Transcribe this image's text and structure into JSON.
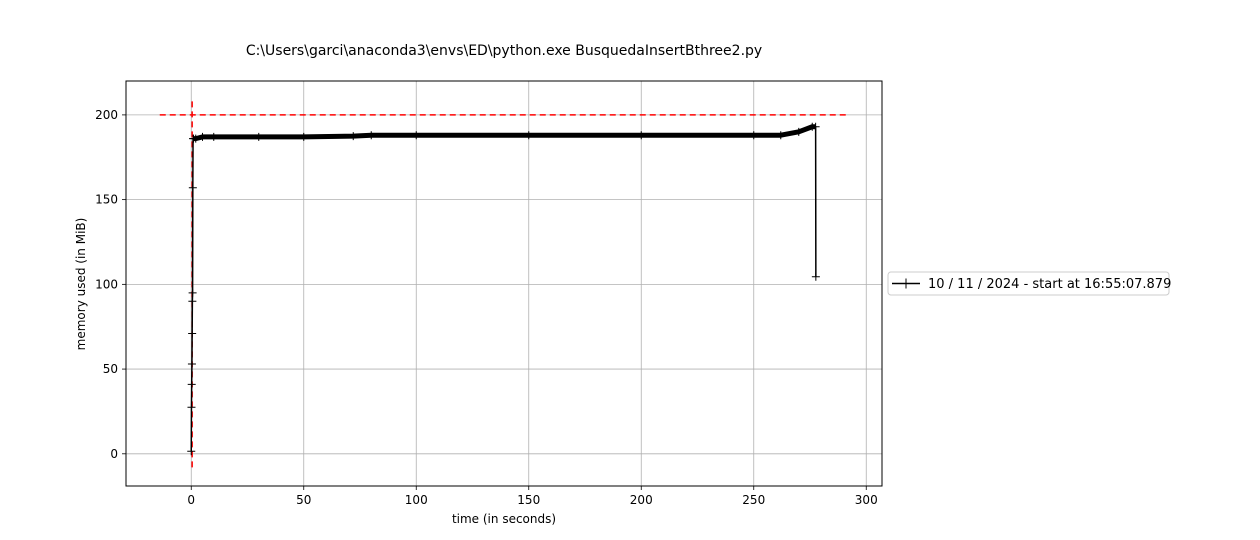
{
  "chart_data": {
    "type": "line",
    "title": "C:\\Users\\garci\\anaconda3\\envs\\ED\\python.exe BusquedaInsertBthree2.py",
    "xlabel": "time (in seconds)",
    "ylabel": "memory used (in MiB)",
    "xlim": [
      -29,
      307
    ],
    "ylim": [
      -19,
      220
    ],
    "xticks": [
      0,
      50,
      100,
      150,
      200,
      250,
      300
    ],
    "yticks": [
      0,
      50,
      100,
      150,
      200
    ],
    "grid": true,
    "legend_position": "outside-right",
    "series": [
      {
        "name": "10 / 11 / 2024 - start at 16:55:07.879",
        "color": "#000000",
        "marker": "+",
        "x": [
          0.0,
          0.1,
          0.2,
          0.3,
          0.4,
          0.5,
          0.6,
          0.7,
          0.8,
          1.0,
          2,
          5,
          10,
          30,
          50,
          72,
          80,
          100,
          150,
          200,
          250,
          262,
          270,
          276,
          277.5,
          277.6
        ],
        "y": [
          1.5,
          27.5,
          41,
          53,
          71,
          90,
          95,
          157,
          186,
          186,
          186,
          187,
          187,
          187,
          187,
          187.5,
          188,
          188,
          188,
          188,
          188,
          188,
          190,
          193,
          193,
          104.5
        ]
      }
    ],
    "reference_lines": [
      {
        "orientation": "horizontal",
        "value": 200,
        "from": -14,
        "to": 292,
        "color": "#ff0000",
        "style": "dashed"
      },
      {
        "orientation": "vertical",
        "value": 0.4,
        "from": -8,
        "to": 210,
        "color": "#ff0000",
        "style": "dashed"
      }
    ]
  }
}
